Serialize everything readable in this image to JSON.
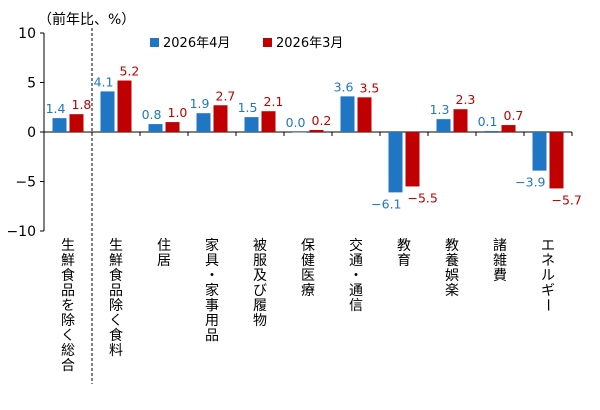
{
  "chart_data": {
    "type": "bar",
    "unit_label": "（前年比、%）",
    "categories": [
      "生鮮食品を除く総合",
      "生鮮食品除く食料",
      "住居",
      "家具・家事用品",
      "被服及び履物",
      "保健医療",
      "交通・通信",
      "教育",
      "教養娯楽",
      "諸雑費",
      "エネルギー"
    ],
    "series": [
      {
        "name": "2026年4月",
        "color": "#1f77c4",
        "values": [
          1.4,
          4.1,
          0.8,
          1.9,
          1.5,
          0.0,
          3.6,
          -6.1,
          1.3,
          0.1,
          -3.9
        ],
        "labels": [
          "1.4",
          "4.1",
          "0.8",
          "1.9",
          "1.5",
          "0.0",
          "3.6",
          "−6.1",
          "1.3",
          "0.1",
          "−3.9"
        ]
      },
      {
        "name": "2026年3月",
        "color": "#c00000",
        "values": [
          1.8,
          5.2,
          1.0,
          2.7,
          2.1,
          0.2,
          3.5,
          -5.5,
          2.3,
          0.7,
          -5.7
        ],
        "labels": [
          "1.8",
          "5.2",
          "1.0",
          "2.7",
          "2.1",
          "0.2",
          "3.5",
          "−5.5",
          "2.3",
          "0.7",
          "−5.7"
        ]
      }
    ],
    "ylim": [
      -10,
      10
    ],
    "yticks": [
      10,
      5,
      0,
      -5,
      -10
    ],
    "ytick_labels": [
      "10",
      "5",
      "0",
      "−5",
      "−10"
    ],
    "grid": false,
    "legend_position": "top",
    "separator_after_category": 0
  }
}
